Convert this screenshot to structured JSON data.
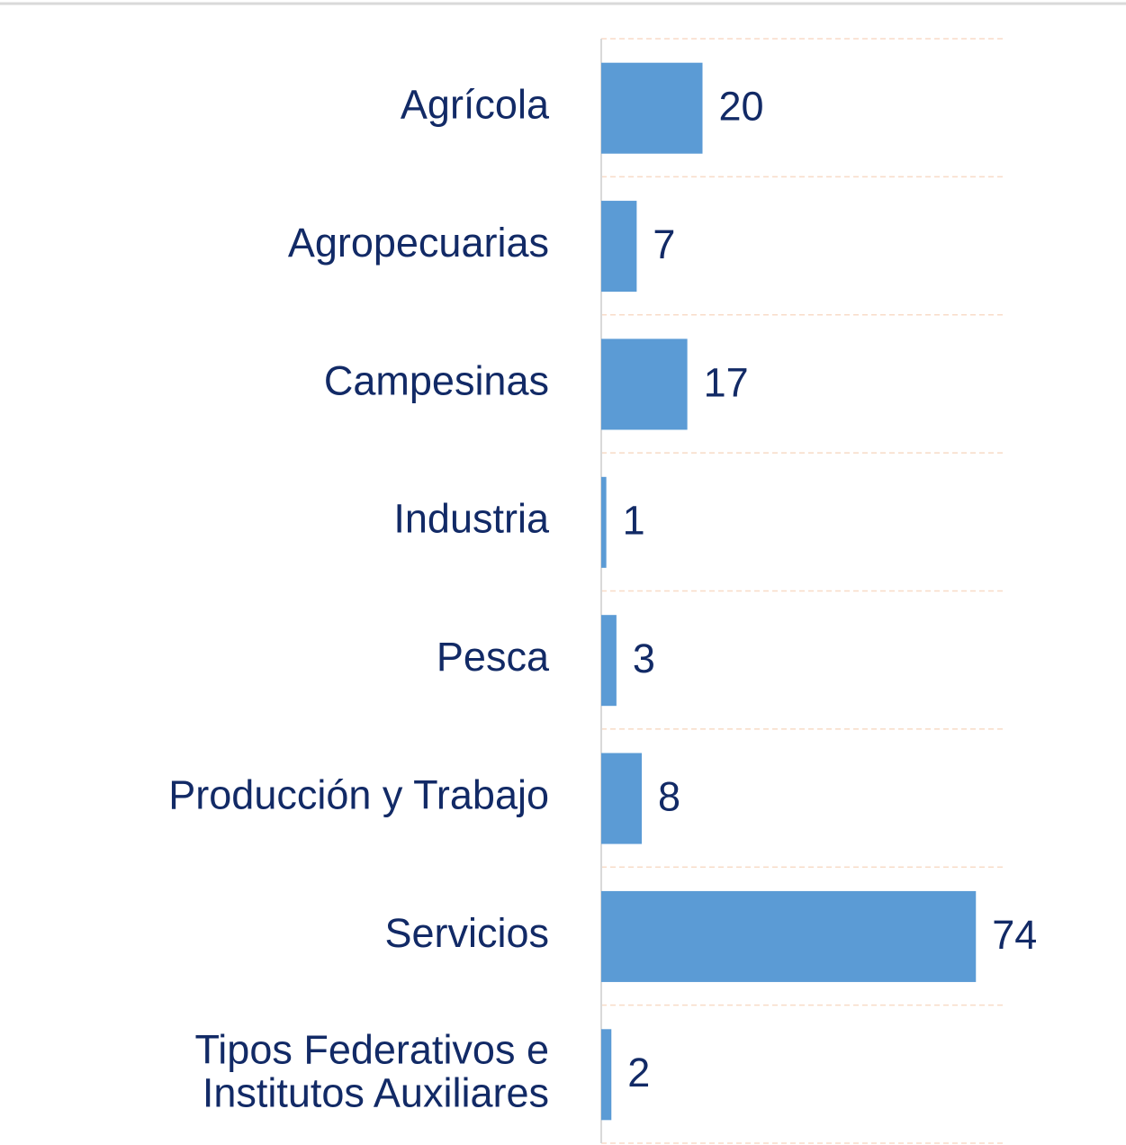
{
  "chart_data": {
    "type": "bar",
    "orientation": "horizontal",
    "categories": [
      "Agrícola",
      "Agropecuarias",
      "Campesinas",
      "Industria",
      "Pesca",
      "Producción y Trabajo",
      "Servicios",
      "Tipos Federativos e\nInstitutos Auxiliares"
    ],
    "values": [
      20,
      7,
      17,
      1,
      3,
      8,
      74,
      2
    ],
    "color": "#5b9bd5",
    "xlim": [
      0,
      80
    ]
  }
}
